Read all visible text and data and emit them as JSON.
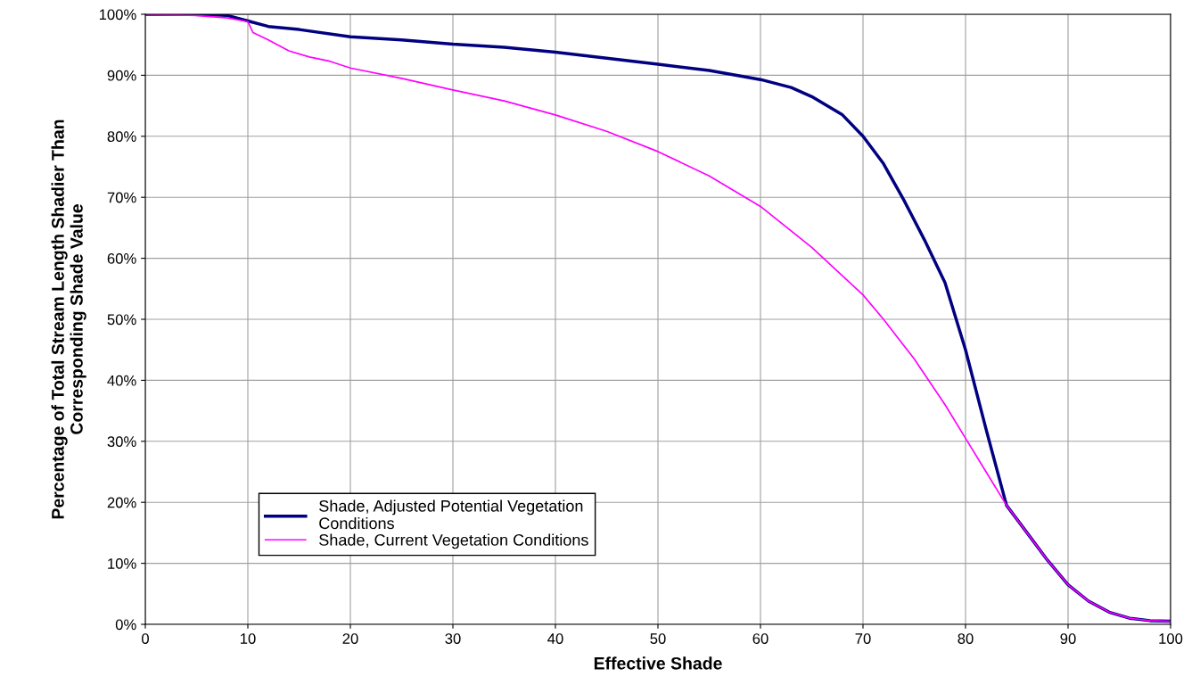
{
  "chart_data": {
    "type": "line",
    "xlabel": "Effective Shade",
    "ylabel": "Percentage of Total Stream Length Shadier Than\nCorresponding Shade Value",
    "xlim": [
      0,
      100
    ],
    "xticks": [
      0,
      10,
      20,
      30,
      40,
      50,
      60,
      70,
      80,
      90,
      100
    ],
    "ylim": [
      0,
      100
    ],
    "yticks": [
      {
        "value": 0,
        "label": "0%"
      },
      {
        "value": 10,
        "label": "10%"
      },
      {
        "value": 20,
        "label": "20%"
      },
      {
        "value": 30,
        "label": "30%"
      },
      {
        "value": 40,
        "label": "40%"
      },
      {
        "value": 50,
        "label": "50%"
      },
      {
        "value": 60,
        "label": "60%"
      },
      {
        "value": 70,
        "label": "70%"
      },
      {
        "value": 80,
        "label": "80%"
      },
      {
        "value": 90,
        "label": "90%"
      },
      {
        "value": 100,
        "label": "100%"
      }
    ],
    "grid": true,
    "legend": "bottom left",
    "marker": "none",
    "line_style": "solid",
    "series": [
      {
        "name": "Shade, Adjusted Potential Vegetation\nConditions",
        "color": "#000080",
        "x": [
          0,
          4,
          8,
          10,
          12,
          15,
          20,
          25,
          30,
          35,
          40,
          45,
          50,
          55,
          60,
          63,
          65,
          68,
          70,
          72,
          74,
          76,
          78,
          80,
          82,
          84,
          86,
          88,
          90,
          92,
          94,
          96,
          98,
          100
        ],
        "values": [
          100,
          100,
          99.8,
          98.9,
          98,
          97.5,
          96.3,
          95.8,
          95.1,
          94.6,
          93.8,
          92.8,
          91.8,
          90.8,
          89.3,
          88,
          86.5,
          83.5,
          80,
          75.5,
          69.5,
          63,
          56,
          45,
          32,
          19.5,
          15,
          10.5,
          6.5,
          3.8,
          2,
          1,
          0.6,
          0.5
        ]
      },
      {
        "name": "Shade, Current Vegetation Conditions",
        "color": "#ff00ff",
        "x": [
          0,
          5,
          8,
          10,
          10.5,
          12,
          14,
          16,
          18,
          20,
          25,
          30,
          35,
          40,
          45,
          50,
          55,
          60,
          65,
          70,
          72,
          75,
          78,
          80,
          82,
          84,
          86,
          88,
          90,
          92,
          94,
          96,
          98,
          100
        ],
        "values": [
          100,
          99.8,
          99.4,
          98.8,
          97,
          95.8,
          94,
          93,
          92.3,
          91.2,
          89.5,
          87.6,
          85.8,
          83.5,
          80.8,
          77.5,
          73.5,
          68.5,
          61.8,
          54,
          50,
          43.5,
          36,
          30.5,
          25,
          19.5,
          15,
          10.5,
          6.5,
          3.8,
          2,
          1,
          0.6,
          0.5
        ]
      }
    ]
  }
}
